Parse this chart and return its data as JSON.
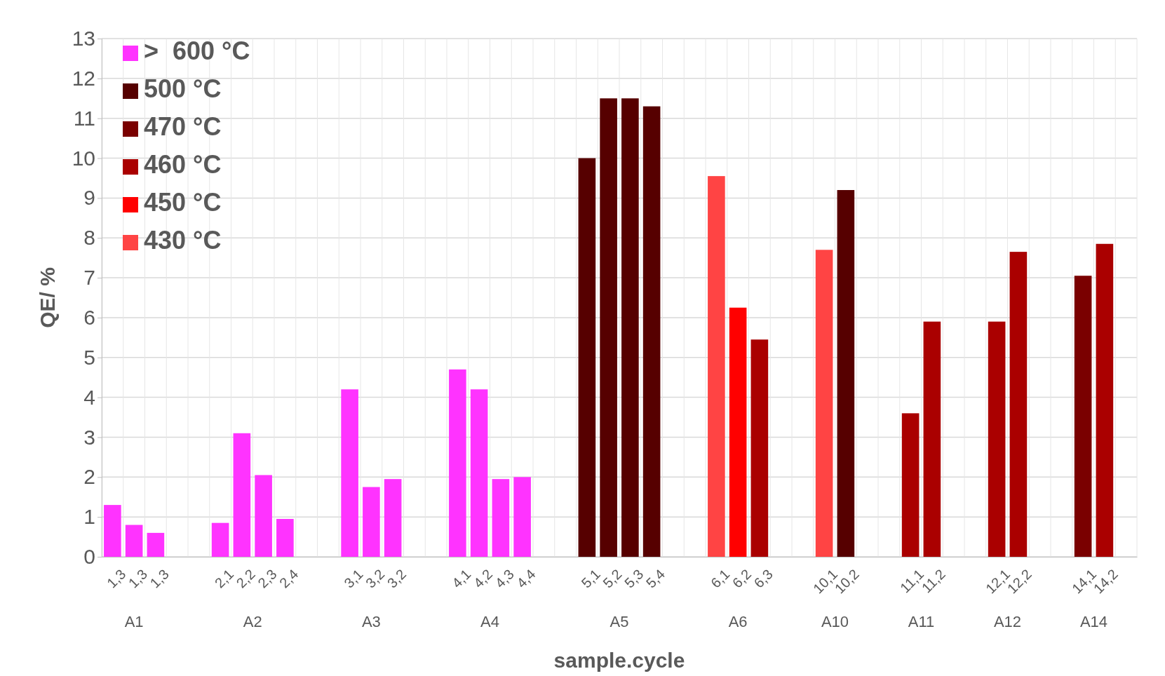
{
  "chart_data": {
    "type": "bar",
    "xlabel": "sample.cycle",
    "ylabel": "QE/ %",
    "categories": [
      "1,3",
      "1,3",
      "1,3",
      null,
      null,
      "2,1",
      "2,2",
      "2,3",
      "2,4",
      null,
      null,
      "3,1",
      "3,2",
      "3,2",
      null,
      null,
      "4,1",
      "4,2",
      "4,3",
      "4,4",
      null,
      null,
      "5,1",
      "5,2",
      "5,3",
      "5,4",
      null,
      null,
      "6,1",
      "6,2",
      "6,3",
      null,
      null,
      "10,1",
      "10,2",
      null,
      null,
      "11,1",
      "11,2",
      null,
      null,
      "12,1",
      "12,2",
      null,
      null,
      "14,1",
      "14,2",
      null
    ],
    "series": [
      {
        "name": ">  600 °C",
        "color": "#ff33ff",
        "values": [
          1.3,
          0.8,
          0.6,
          null,
          null,
          0.85,
          3.1,
          2.05,
          0.95,
          null,
          null,
          4.2,
          1.75,
          1.95,
          null,
          null,
          4.7,
          4.2,
          1.95,
          2.0,
          null,
          null,
          null,
          null,
          null,
          null,
          null,
          null,
          null,
          null,
          null,
          null,
          null,
          null,
          null,
          null,
          null,
          null,
          null,
          null,
          null,
          null,
          null,
          null,
          null,
          null,
          null,
          null
        ]
      },
      {
        "name": "500 °C",
        "color": "#560000",
        "values": [
          null,
          null,
          null,
          null,
          null,
          null,
          null,
          null,
          null,
          null,
          null,
          null,
          null,
          null,
          null,
          null,
          null,
          null,
          null,
          null,
          null,
          null,
          10.0,
          11.5,
          11.5,
          11.3,
          null,
          null,
          null,
          null,
          null,
          null,
          null,
          null,
          9.2,
          null,
          null,
          null,
          null,
          null,
          null,
          null,
          null,
          null,
          null,
          null,
          null,
          null
        ]
      },
      {
        "name": "470 °C",
        "color": "#7a0000",
        "values": [
          null,
          null,
          null,
          null,
          null,
          null,
          null,
          null,
          null,
          null,
          null,
          null,
          null,
          null,
          null,
          null,
          null,
          null,
          null,
          null,
          null,
          null,
          null,
          null,
          null,
          null,
          null,
          null,
          null,
          null,
          null,
          null,
          null,
          null,
          null,
          null,
          null,
          null,
          null,
          null,
          null,
          null,
          null,
          null,
          null,
          7.05,
          null,
          null
        ]
      },
      {
        "name": "460 °C",
        "color": "#aa0000",
        "values": [
          null,
          null,
          null,
          null,
          null,
          null,
          null,
          null,
          null,
          null,
          null,
          null,
          null,
          null,
          null,
          null,
          null,
          null,
          null,
          null,
          null,
          null,
          null,
          null,
          null,
          null,
          null,
          null,
          null,
          null,
          5.45,
          null,
          null,
          null,
          null,
          null,
          null,
          3.6,
          5.9,
          null,
          null,
          5.9,
          7.65,
          null,
          null,
          null,
          7.85,
          null
        ]
      },
      {
        "name": "450 °C",
        "color": "#ff0000",
        "values": [
          null,
          null,
          null,
          null,
          null,
          null,
          null,
          null,
          null,
          null,
          null,
          null,
          null,
          null,
          null,
          null,
          null,
          null,
          null,
          null,
          null,
          null,
          null,
          null,
          null,
          null,
          null,
          null,
          null,
          6.25,
          null,
          null,
          null,
          null,
          null,
          null,
          null,
          null,
          null,
          null,
          null,
          null,
          null,
          null,
          null,
          null,
          null,
          null
        ]
      },
      {
        "name": "430 °C",
        "color": "#ff4444",
        "values": [
          null,
          null,
          null,
          null,
          null,
          null,
          null,
          null,
          null,
          null,
          null,
          null,
          null,
          null,
          null,
          null,
          null,
          null,
          null,
          null,
          null,
          null,
          null,
          null,
          null,
          null,
          null,
          null,
          9.55,
          null,
          null,
          null,
          null,
          7.7,
          null,
          null,
          null,
          null,
          null,
          null,
          null,
          null,
          null,
          null,
          null,
          null,
          null,
          null
        ]
      }
    ],
    "ylim": [
      0,
      13
    ],
    "yticks": [
      0,
      1,
      2,
      3,
      4,
      5,
      6,
      7,
      8,
      9,
      10,
      11,
      12,
      13
    ],
    "grid": true,
    "legend": "top left",
    "annotations": [
      "A1",
      "A2",
      "A3",
      "A4",
      "A5",
      "A6",
      "A10",
      "A11",
      "A12",
      "A14"
    ]
  }
}
